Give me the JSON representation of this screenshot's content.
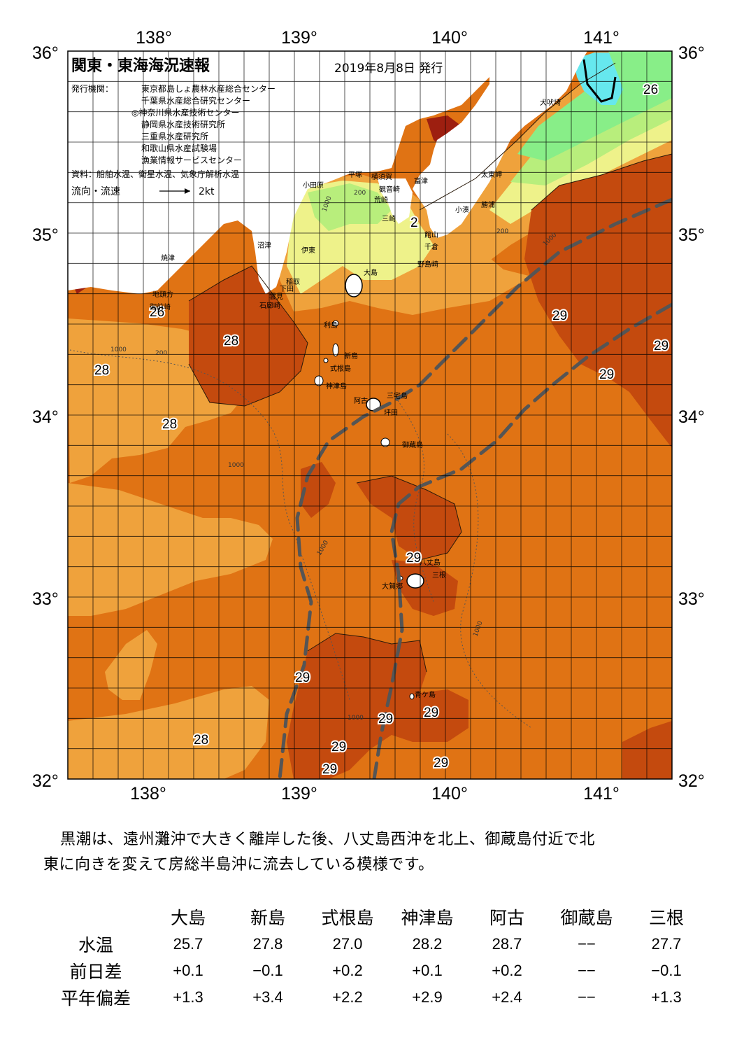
{
  "header": {
    "title": "関東・東海海況速報",
    "issued": "2019年8月8日 発行",
    "issuer_label": "発行機関：",
    "issuers": [
      "東京都島しょ農林水産総合センター",
      "千葉県水産総合研究センター",
      "◎神奈川県水産技術センター",
      "静岡県水産技術研究所",
      "三重県水産研究所",
      "和歌山県水産試験場",
      "漁業情報サービスセンター"
    ],
    "source": "資料：船舶水温、衛星水温、気象庁解析水温",
    "flow_label": "流向・流速",
    "flow_scale": "2kt"
  },
  "axes": {
    "lon_labels": [
      "138°",
      "139°",
      "140°",
      "141°"
    ],
    "lat_labels": [
      "36°",
      "35°",
      "34°",
      "33°",
      "32°"
    ]
  },
  "colors": {
    "t_lt23": "#66e8ee",
    "t_23_24": "#88ee88",
    "t_24_25": "#b8ee7c",
    "t_25_26": "#eef28a",
    "t_26_27": "#f6cf66",
    "t_27_28": "#efa23c",
    "t_28_29": "#e07314",
    "t_29_30": "#c44a0e",
    "t_gt30": "#9d1f10",
    "kuroshio_axis": "#555555"
  },
  "temperature_labels": [
    {
      "text": "26"
    },
    {
      "text": "29"
    },
    {
      "text": "29"
    },
    {
      "text": "29"
    },
    {
      "text": "28"
    },
    {
      "text": "28"
    },
    {
      "text": "28"
    },
    {
      "text": "26"
    },
    {
      "text": "29"
    },
    {
      "text": "29"
    },
    {
      "text": "29"
    },
    {
      "text": "29"
    },
    {
      "text": "29"
    },
    {
      "text": "29"
    },
    {
      "text": "29"
    },
    {
      "text": "28"
    },
    {
      "text": "2"
    }
  ],
  "place_names": {
    "inubozaki": "犬吠埼",
    "taitomisaki": "太東岬",
    "katsuura": "勝浦",
    "kominato": "小湊",
    "tateyama": "館山",
    "chikura": "千倉",
    "nojimazaki": "野島崎",
    "futtsu": "富津",
    "yokosuka": "横須賀",
    "kannonzaki": "観音崎",
    "arasaki": "荒崎",
    "misaki": "三崎",
    "hiratsuka": "平塚",
    "odawara": "小田原",
    "numazu": "沼津",
    "ito": "伊東",
    "inatori": "稲取",
    "shimoda": "下田",
    "unmi": "雲見",
    "irozaki": "石廊崎",
    "yaizu": "焼津",
    "jitokata": "地頭方",
    "omaezaki": "御前崎",
    "oshima": "大島",
    "toshima": "利島",
    "niijima": "新島",
    "shikinejima": "式根島",
    "kozushima": "神津島",
    "miyakejima": "三宅島",
    "ako": "阿古",
    "tsubota": "坪田",
    "mikurajima": "御蔵島",
    "hachijojima": "八丈島",
    "mitsune": "三根",
    "ohkago": "大賀郷",
    "aogashima": "青ケ島"
  },
  "depth_labels": [
    "200",
    "1000"
  ],
  "summary": [
    "黒潮は、遠州灘沖で大きく離岸した後、八丈島西沖を北上、御蔵島付近で北",
    "東に向きを変えて房総半島沖に流去している模様です。"
  ],
  "stats": {
    "stations": [
      "大島",
      "新島",
      "式根島",
      "神津島",
      "阿古",
      "御蔵島",
      "三根"
    ],
    "rows": [
      {
        "label": "水温",
        "values": [
          "25.7",
          "27.8",
          "27.0",
          "28.2",
          "28.7",
          "−−",
          "27.7"
        ]
      },
      {
        "label": "前日差",
        "values": [
          "+0.1",
          "−0.1",
          "+0.2",
          "+0.1",
          "+0.2",
          "−−",
          "−0.1"
        ]
      },
      {
        "label": "平年偏差",
        "values": [
          "+1.3",
          "+3.4",
          "+2.2",
          "+2.9",
          "+2.4",
          "−−",
          "+1.3"
        ]
      }
    ]
  }
}
